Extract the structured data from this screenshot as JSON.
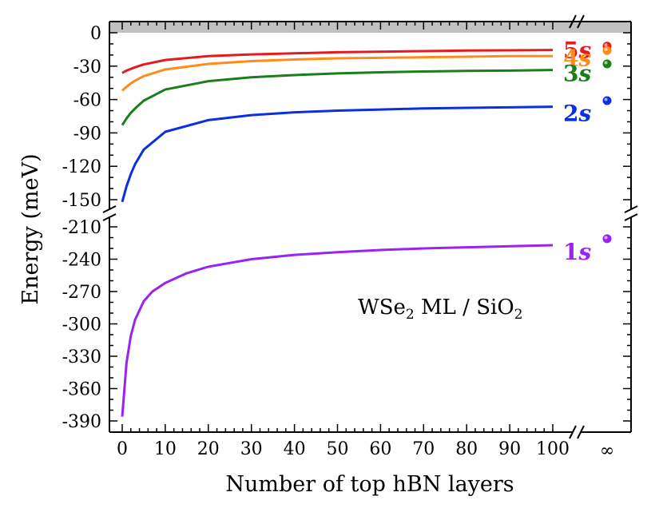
{
  "chart_data": {
    "type": "line",
    "xlabel": "Number of top hBN layers",
    "ylabel": "Energy (meV)",
    "annotation": {
      "base": "WSe",
      "sub1": "2",
      "mid": " ML / SiO",
      "sub2": "2"
    },
    "x_ticks": [
      "0",
      "10",
      "20",
      "30",
      "40",
      "50",
      "60",
      "70",
      "80",
      "90",
      "100"
    ],
    "x_inf_label": "∞",
    "y_ticks_upper": [
      "0",
      "-30",
      "-60",
      "-90",
      "-120",
      "-150"
    ],
    "y_ticks_lower": [
      "-210",
      "-240",
      "-270",
      "-300",
      "-330",
      "-360",
      "-390"
    ],
    "xlim": [
      -2,
      105
    ],
    "ylim_upper": [
      -157,
      2
    ],
    "ylim_lower": [
      -393,
      -203
    ],
    "shaded_band": {
      "from": 0,
      "color": "#c0c0c0"
    },
    "grid": false,
    "series": [
      {
        "name": "5s",
        "label_num": "5",
        "label_sym": "s",
        "color": "#e41a1c",
        "x": [
          0,
          1,
          2,
          3,
          5,
          10,
          20,
          30,
          40,
          50,
          60,
          70,
          80,
          90,
          100
        ],
        "y": [
          -36,
          -34,
          -32.5,
          -31,
          -28.5,
          -24.5,
          -21,
          -19.5,
          -18.5,
          -17.5,
          -17,
          -16.5,
          -16,
          -15.8,
          -15.5
        ],
        "infinity_value": -12
      },
      {
        "name": "4s",
        "label_num": "4",
        "label_sym": "s",
        "color": "#ff8c1a",
        "x": [
          0,
          1,
          2,
          3,
          5,
          10,
          20,
          30,
          40,
          50,
          60,
          70,
          80,
          90,
          100
        ],
        "y": [
          -52,
          -48.5,
          -45.5,
          -43,
          -39,
          -33,
          -28,
          -25.5,
          -24,
          -23,
          -22.5,
          -22,
          -21.5,
          -21,
          -21
        ],
        "infinity_value": -16
      },
      {
        "name": "3s",
        "label_num": "3",
        "label_sym": "s",
        "color": "#1a7f1a",
        "x": [
          0,
          1,
          2,
          3,
          5,
          10,
          20,
          30,
          40,
          50,
          60,
          70,
          80,
          90,
          100
        ],
        "y": [
          -83,
          -77,
          -72,
          -68,
          -61,
          -51,
          -43.5,
          -40,
          -38,
          -36.5,
          -35.5,
          -34.8,
          -34.3,
          -34,
          -33.5
        ],
        "infinity_value": -28
      },
      {
        "name": "2s",
        "label_num": "2",
        "label_sym": "s",
        "color": "#0a2ee0",
        "x": [
          0,
          1,
          2,
          3,
          5,
          10,
          20,
          30,
          40,
          50,
          60,
          70,
          80,
          90,
          100
        ],
        "y": [
          -152,
          -138,
          -127,
          -118,
          -105,
          -89,
          -78.5,
          -74,
          -71.5,
          -70,
          -69,
          -68,
          -67.5,
          -67,
          -66.5
        ],
        "infinity_value": -61
      },
      {
        "name": "1s",
        "label_num": "1",
        "label_sym": "s",
        "color": "#9a22f2",
        "x": [
          0,
          1,
          2,
          3,
          5,
          7,
          10,
          15,
          20,
          30,
          40,
          50,
          60,
          70,
          80,
          90,
          100
        ],
        "y": [
          -386,
          -336,
          -311,
          -296,
          -279,
          -270,
          -262,
          -253,
          -247,
          -240,
          -236,
          -233.5,
          -231.5,
          -230,
          -229,
          -228,
          -227
        ],
        "infinity_value": -221
      }
    ]
  }
}
